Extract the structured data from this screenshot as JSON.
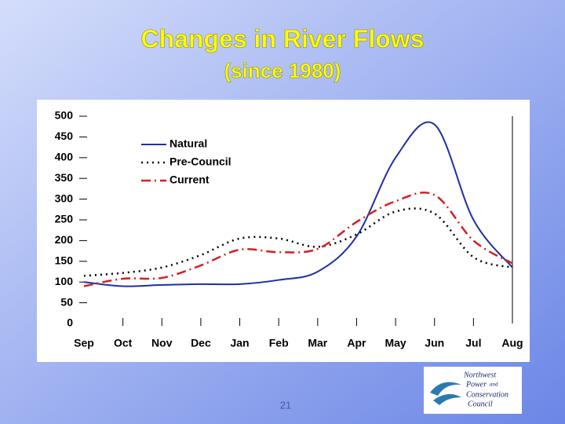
{
  "chart_data": {
    "type": "line",
    "title": "Changes in River Flows",
    "subtitle": "(since 1980)",
    "categories": [
      "Sep",
      "Oct",
      "Nov",
      "Dec",
      "Jan",
      "Feb",
      "Mar",
      "Apr",
      "May",
      "Jun",
      "Jul",
      "Aug"
    ],
    "series": [
      {
        "name": "Natural",
        "color": "#1f2fa8",
        "dash": "solid",
        "values": [
          100,
          90,
          93,
          95,
          95,
          105,
          125,
          210,
          400,
          480,
          250,
          135
        ]
      },
      {
        "name": "Pre-Council",
        "color": "#000000",
        "dash": "dotted",
        "values": [
          115,
          122,
          135,
          165,
          205,
          205,
          185,
          215,
          270,
          265,
          160,
          135
        ]
      },
      {
        "name": "Current",
        "color": "#d42020",
        "dash": "dashdot",
        "values": [
          90,
          108,
          110,
          140,
          178,
          172,
          180,
          245,
          295,
          310,
          200,
          145
        ]
      }
    ],
    "ylim": [
      0,
      500
    ],
    "yticks": [
      0,
      50,
      100,
      150,
      200,
      250,
      300,
      350,
      400,
      450,
      500
    ],
    "grid": false,
    "legend": "upper left",
    "page_number": "21",
    "logo": [
      "Northwest",
      "Power",
      "and",
      "Conservation",
      "Council"
    ]
  }
}
